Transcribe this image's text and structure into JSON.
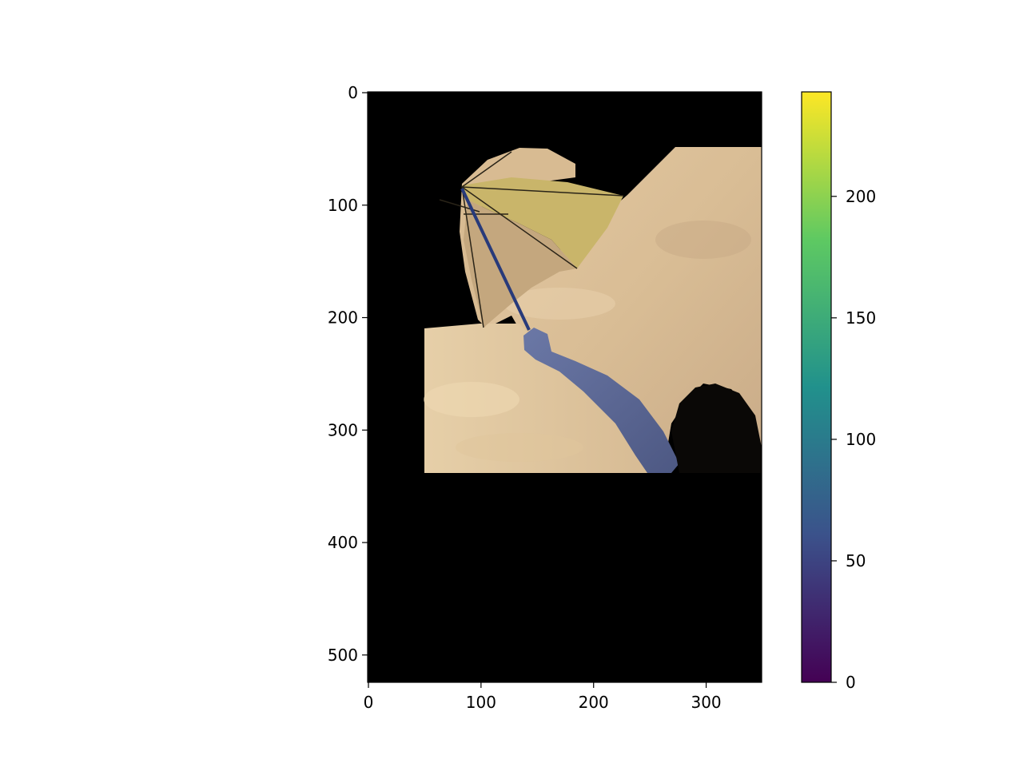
{
  "figure": {
    "x_axis": {
      "ticks": [
        0,
        100,
        200,
        300
      ],
      "range": [
        0,
        350
      ]
    },
    "y_axis": {
      "ticks": [
        0,
        100,
        200,
        300,
        400,
        500
      ],
      "range": [
        0,
        525
      ],
      "inverted": true
    },
    "colorbar": {
      "colormap": "viridis",
      "ticks": [
        0,
        50,
        100,
        150,
        200
      ],
      "range": [
        0,
        243
      ],
      "colors": [
        "#440154",
        "#3b528b",
        "#21918c",
        "#5ec962",
        "#fde725"
      ]
    },
    "image": {
      "description_colors": {
        "background": "#000000",
        "sky_light": "#e8cfa8",
        "sky_dark": "#bfa383",
        "umbrella": "#c9b56a",
        "arm": "#5a6590"
      }
    }
  }
}
